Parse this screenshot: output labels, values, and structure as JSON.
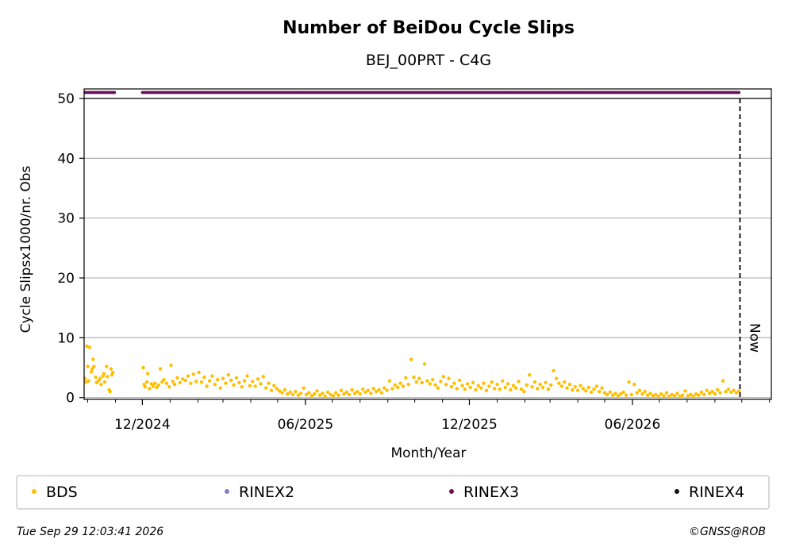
{
  "chart_data": {
    "type": "scatter",
    "title": "Number of BeiDou Cycle Slips",
    "subtitle": "BEJ_00PRT - C4G",
    "xlabel": "Month/Year",
    "ylabel": "Cycle Slipsx1000/nr. Obs",
    "x_ticks": [
      "12/2024",
      "06/2025",
      "12/2025",
      "06/2026"
    ],
    "x_tick_dates": [
      "2024-12-01",
      "2025-06-01",
      "2025-12-01",
      "2026-06-01"
    ],
    "xlim": [
      "2024-09-27",
      "2026-11-03"
    ],
    "y_ticks": [
      "0",
      "10",
      "20",
      "30",
      "40",
      "50"
    ],
    "ylim": [
      -0.3,
      50
    ],
    "grid": "horizontal",
    "now_label": "Now",
    "now_date": "2026-09-29",
    "legend_position": "bottom",
    "series": [
      {
        "name": "BDS",
        "color": "#FFBF00",
        "points": [
          [
            "2024-09-28",
            3.2
          ],
          [
            "2024-09-29",
            2.6
          ],
          [
            "2024-09-30",
            8.6
          ],
          [
            "2024-10-01",
            5.2
          ],
          [
            "2024-10-02",
            2.8
          ],
          [
            "2024-10-03",
            8.4
          ],
          [
            "2024-10-05",
            4.3
          ],
          [
            "2024-10-06",
            4.8
          ],
          [
            "2024-10-07",
            6.4
          ],
          [
            "2024-10-08",
            5.2
          ],
          [
            "2024-10-10",
            3.4
          ],
          [
            "2024-10-11",
            2.5
          ],
          [
            "2024-10-13",
            2.8
          ],
          [
            "2024-10-15",
            3.2
          ],
          [
            "2024-10-16",
            2.2
          ],
          [
            "2024-10-18",
            3.6
          ],
          [
            "2024-10-19",
            4.0
          ],
          [
            "2024-10-20",
            2.6
          ],
          [
            "2024-10-22",
            5.2
          ],
          [
            "2024-10-23",
            3.5
          ],
          [
            "2024-10-25",
            1.3
          ],
          [
            "2024-10-26",
            1.0
          ],
          [
            "2024-10-27",
            4.8
          ],
          [
            "2024-10-28",
            3.8
          ],
          [
            "2024-10-29",
            4.2
          ],
          [
            "2024-12-02",
            5.0
          ],
          [
            "2024-12-03",
            2.2
          ],
          [
            "2024-12-04",
            1.8
          ],
          [
            "2024-12-06",
            2.6
          ],
          [
            "2024-12-07",
            4.0
          ],
          [
            "2024-12-09",
            1.5
          ],
          [
            "2024-12-11",
            2.3
          ],
          [
            "2024-12-13",
            1.9
          ],
          [
            "2024-12-15",
            2.4
          ],
          [
            "2024-12-17",
            1.7
          ],
          [
            "2024-12-19",
            2.1
          ],
          [
            "2024-12-21",
            4.8
          ],
          [
            "2024-12-23",
            2.6
          ],
          [
            "2024-12-25",
            3.0
          ],
          [
            "2024-12-28",
            2.4
          ],
          [
            "2024-12-31",
            1.8
          ],
          [
            "2025-01-02",
            5.4
          ],
          [
            "2025-01-04",
            2.7
          ],
          [
            "2025-01-06",
            2.2
          ],
          [
            "2025-01-09",
            3.3
          ],
          [
            "2025-01-12",
            2.5
          ],
          [
            "2025-01-15",
            3.1
          ],
          [
            "2025-01-18",
            2.9
          ],
          [
            "2025-01-21",
            3.6
          ],
          [
            "2025-01-24",
            2.4
          ],
          [
            "2025-01-27",
            3.9
          ],
          [
            "2025-01-30",
            2.7
          ],
          [
            "2025-02-02",
            4.2
          ],
          [
            "2025-02-05",
            2.6
          ],
          [
            "2025-02-08",
            3.4
          ],
          [
            "2025-02-11",
            1.9
          ],
          [
            "2025-02-14",
            2.8
          ],
          [
            "2025-02-17",
            3.6
          ],
          [
            "2025-02-20",
            2.2
          ],
          [
            "2025-02-23",
            3.0
          ],
          [
            "2025-02-26",
            1.6
          ],
          [
            "2025-03-01",
            3.2
          ],
          [
            "2025-03-04",
            2.4
          ],
          [
            "2025-03-07",
            3.8
          ],
          [
            "2025-03-10",
            2.9
          ],
          [
            "2025-03-13",
            2.1
          ],
          [
            "2025-03-16",
            3.3
          ],
          [
            "2025-03-19",
            2.5
          ],
          [
            "2025-03-22",
            1.8
          ],
          [
            "2025-03-25",
            2.8
          ],
          [
            "2025-03-28",
            3.6
          ],
          [
            "2025-03-31",
            2.0
          ],
          [
            "2025-04-03",
            2.7
          ],
          [
            "2025-04-06",
            1.9
          ],
          [
            "2025-04-09",
            3.1
          ],
          [
            "2025-04-12",
            2.3
          ],
          [
            "2025-04-15",
            3.5
          ],
          [
            "2025-04-18",
            1.6
          ],
          [
            "2025-04-21",
            2.4
          ],
          [
            "2025-04-24",
            1.2
          ],
          [
            "2025-04-27",
            2.0
          ],
          [
            "2025-04-30",
            1.5
          ],
          [
            "2025-05-03",
            1.1
          ],
          [
            "2025-05-06",
            0.8
          ],
          [
            "2025-05-09",
            1.3
          ],
          [
            "2025-05-12",
            0.6
          ],
          [
            "2025-05-15",
            0.9
          ],
          [
            "2025-05-18",
            0.5
          ],
          [
            "2025-05-21",
            1.0
          ],
          [
            "2025-05-24",
            0.4
          ],
          [
            "2025-05-27",
            0.7
          ],
          [
            "2025-05-30",
            1.6
          ],
          [
            "2025-06-02",
            0.5
          ],
          [
            "2025-06-05",
            0.8
          ],
          [
            "2025-06-08",
            0.3
          ],
          [
            "2025-06-11",
            0.6
          ],
          [
            "2025-06-14",
            1.1
          ],
          [
            "2025-06-17",
            0.4
          ],
          [
            "2025-06-20",
            0.7
          ],
          [
            "2025-06-23",
            0.2
          ],
          [
            "2025-06-26",
            0.9
          ],
          [
            "2025-06-29",
            0.5
          ],
          [
            "2025-07-02",
            0.3
          ],
          [
            "2025-07-05",
            0.8
          ],
          [
            "2025-07-08",
            0.4
          ],
          [
            "2025-07-11",
            1.2
          ],
          [
            "2025-07-14",
            0.6
          ],
          [
            "2025-07-17",
            0.9
          ],
          [
            "2025-07-20",
            0.5
          ],
          [
            "2025-07-23",
            1.3
          ],
          [
            "2025-07-26",
            0.7
          ],
          [
            "2025-07-29",
            1.0
          ],
          [
            "2025-08-01",
            0.6
          ],
          [
            "2025-08-04",
            1.4
          ],
          [
            "2025-08-07",
            0.9
          ],
          [
            "2025-08-10",
            1.2
          ],
          [
            "2025-08-13",
            0.7
          ],
          [
            "2025-08-16",
            1.5
          ],
          [
            "2025-08-19",
            1.0
          ],
          [
            "2025-08-22",
            1.3
          ],
          [
            "2025-08-25",
            0.8
          ],
          [
            "2025-08-28",
            1.6
          ],
          [
            "2025-08-31",
            1.2
          ],
          [
            "2025-09-03",
            2.8
          ],
          [
            "2025-09-06",
            1.5
          ],
          [
            "2025-09-09",
            2.1
          ],
          [
            "2025-09-12",
            1.7
          ],
          [
            "2025-09-15",
            2.4
          ],
          [
            "2025-09-18",
            1.9
          ],
          [
            "2025-09-21",
            3.3
          ],
          [
            "2025-09-24",
            2.2
          ],
          [
            "2025-09-27",
            6.4
          ],
          [
            "2025-09-30",
            3.4
          ],
          [
            "2025-10-03",
            2.6
          ],
          [
            "2025-10-06",
            3.2
          ],
          [
            "2025-10-09",
            2.5
          ],
          [
            "2025-10-12",
            5.6
          ],
          [
            "2025-10-15",
            2.8
          ],
          [
            "2025-10-18",
            2.3
          ],
          [
            "2025-10-21",
            3.0
          ],
          [
            "2025-10-24",
            2.1
          ],
          [
            "2025-10-27",
            1.6
          ],
          [
            "2025-10-30",
            2.7
          ],
          [
            "2025-11-02",
            3.5
          ],
          [
            "2025-11-05",
            2.2
          ],
          [
            "2025-11-08",
            3.2
          ],
          [
            "2025-11-11",
            1.8
          ],
          [
            "2025-11-14",
            2.4
          ],
          [
            "2025-11-17",
            1.5
          ],
          [
            "2025-11-20",
            2.9
          ],
          [
            "2025-11-23",
            2.0
          ],
          [
            "2025-11-26",
            1.4
          ],
          [
            "2025-11-29",
            2.3
          ],
          [
            "2025-12-02",
            1.7
          ],
          [
            "2025-12-05",
            2.5
          ],
          [
            "2025-12-08",
            1.3
          ],
          [
            "2025-12-11",
            2.0
          ],
          [
            "2025-12-14",
            1.6
          ],
          [
            "2025-12-17",
            2.4
          ],
          [
            "2025-12-20",
            1.2
          ],
          [
            "2025-12-23",
            1.9
          ],
          [
            "2025-12-26",
            2.6
          ],
          [
            "2025-12-29",
            1.5
          ],
          [
            "2026-01-01",
            2.2
          ],
          [
            "2026-01-04",
            1.4
          ],
          [
            "2026-01-07",
            2.8
          ],
          [
            "2026-01-10",
            1.7
          ],
          [
            "2026-01-13",
            2.3
          ],
          [
            "2026-01-16",
            1.3
          ],
          [
            "2026-01-19",
            2.0
          ],
          [
            "2026-01-22",
            1.6
          ],
          [
            "2026-01-25",
            2.7
          ],
          [
            "2026-01-28",
            1.4
          ],
          [
            "2026-01-31",
            1.0
          ],
          [
            "2026-02-03",
            2.1
          ],
          [
            "2026-02-06",
            3.8
          ],
          [
            "2026-02-09",
            1.8
          ],
          [
            "2026-02-12",
            2.6
          ],
          [
            "2026-02-15",
            1.5
          ],
          [
            "2026-02-18",
            2.2
          ],
          [
            "2026-02-21",
            1.7
          ],
          [
            "2026-02-24",
            2.5
          ],
          [
            "2026-02-27",
            1.4
          ],
          [
            "2026-03-02",
            2.1
          ],
          [
            "2026-03-05",
            4.5
          ],
          [
            "2026-03-08",
            3.2
          ],
          [
            "2026-03-11",
            2.4
          ],
          [
            "2026-03-14",
            1.9
          ],
          [
            "2026-03-17",
            2.6
          ],
          [
            "2026-03-20",
            1.6
          ],
          [
            "2026-03-23",
            2.2
          ],
          [
            "2026-03-26",
            1.3
          ],
          [
            "2026-03-29",
            1.8
          ],
          [
            "2026-04-01",
            1.2
          ],
          [
            "2026-04-04",
            2.0
          ],
          [
            "2026-04-07",
            1.5
          ],
          [
            "2026-04-10",
            1.1
          ],
          [
            "2026-04-13",
            1.7
          ],
          [
            "2026-04-16",
            0.9
          ],
          [
            "2026-04-19",
            1.4
          ],
          [
            "2026-04-22",
            1.9
          ],
          [
            "2026-04-25",
            1.0
          ],
          [
            "2026-04-28",
            1.6
          ],
          [
            "2026-05-01",
            0.8
          ],
          [
            "2026-05-04",
            0.5
          ],
          [
            "2026-05-07",
            0.9
          ],
          [
            "2026-05-10",
            0.4
          ],
          [
            "2026-05-13",
            0.7
          ],
          [
            "2026-05-16",
            0.3
          ],
          [
            "2026-05-19",
            0.6
          ],
          [
            "2026-05-22",
            0.9
          ],
          [
            "2026-05-25",
            0.4
          ],
          [
            "2026-05-28",
            2.6
          ],
          [
            "2026-05-31",
            0.5
          ],
          [
            "2026-06-03",
            2.2
          ],
          [
            "2026-06-06",
            0.8
          ],
          [
            "2026-06-09",
            1.2
          ],
          [
            "2026-06-12",
            0.6
          ],
          [
            "2026-06-15",
            1.0
          ],
          [
            "2026-06-18",
            0.4
          ],
          [
            "2026-06-21",
            0.7
          ],
          [
            "2026-06-24",
            0.3
          ],
          [
            "2026-06-27",
            0.5
          ],
          [
            "2026-06-30",
            0.2
          ],
          [
            "2026-07-03",
            0.6
          ],
          [
            "2026-07-06",
            0.3
          ],
          [
            "2026-07-09",
            0.8
          ],
          [
            "2026-07-12",
            0.2
          ],
          [
            "2026-07-15",
            0.5
          ],
          [
            "2026-07-18",
            0.3
          ],
          [
            "2026-07-21",
            0.7
          ],
          [
            "2026-07-24",
            0.2
          ],
          [
            "2026-07-27",
            0.4
          ],
          [
            "2026-07-30",
            1.1
          ],
          [
            "2026-08-02",
            0.3
          ],
          [
            "2026-08-05",
            0.5
          ],
          [
            "2026-08-08",
            0.2
          ],
          [
            "2026-08-11",
            0.6
          ],
          [
            "2026-08-14",
            0.4
          ],
          [
            "2026-08-17",
            0.9
          ],
          [
            "2026-08-20",
            0.5
          ],
          [
            "2026-08-23",
            1.2
          ],
          [
            "2026-08-26",
            0.7
          ],
          [
            "2026-08-29",
            1.0
          ],
          [
            "2026-09-01",
            0.6
          ],
          [
            "2026-09-04",
            1.3
          ],
          [
            "2026-09-07",
            0.8
          ],
          [
            "2026-09-10",
            2.8
          ],
          [
            "2026-09-13",
            1.0
          ],
          [
            "2026-09-16",
            1.4
          ],
          [
            "2026-09-19",
            0.9
          ],
          [
            "2026-09-22",
            1.2
          ],
          [
            "2026-09-25",
            0.8
          ],
          [
            "2026-09-28",
            1.1
          ]
        ]
      },
      {
        "name": "RINEX2",
        "color": "#8B7EBE",
        "points": []
      },
      {
        "name": "RINEX3",
        "color": "#6B0F5E",
        "value": 51,
        "ranges": [
          [
            "2024-09-28",
            "2024-10-31"
          ],
          [
            "2024-12-01",
            "2026-09-28"
          ]
        ]
      },
      {
        "name": "RINEX4",
        "color": "#1A0A12",
        "points": []
      }
    ]
  },
  "footer": {
    "timestamp": "Tue Sep 29 12:03:41 2026",
    "copyright": "©GNSS@ROB"
  }
}
